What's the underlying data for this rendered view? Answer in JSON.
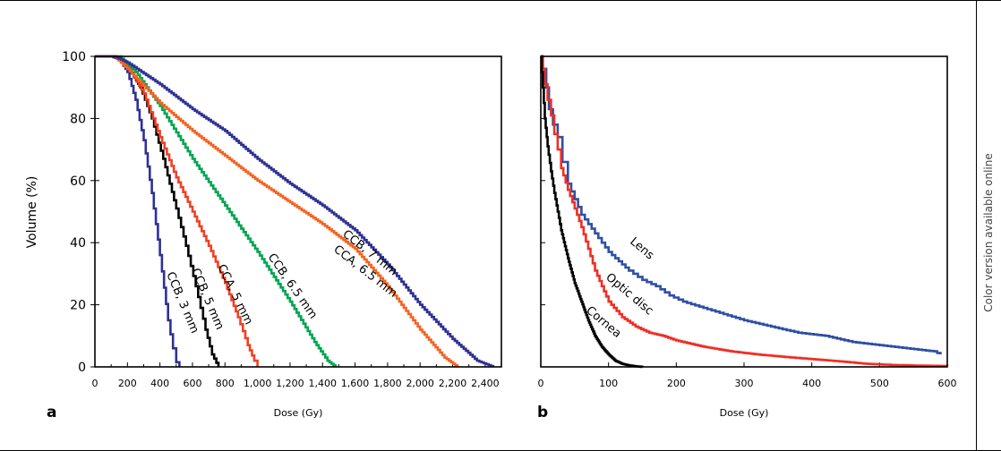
{
  "side_note": "Color version available online",
  "chart_data": [
    {
      "type": "line",
      "panel": "a",
      "xlabel": "Dose (Gy)",
      "ylabel": "Volume (%)",
      "xlim": [
        0,
        2500
      ],
      "ylim": [
        0,
        100
      ],
      "x_ticks": [
        0,
        200,
        400,
        600,
        800,
        1000,
        1200,
        1400,
        1600,
        1800,
        2000,
        2200,
        2400
      ],
      "x_tick_labels": [
        "0",
        "200",
        "400",
        "600",
        "800",
        "1,000",
        "1,200",
        "1,400",
        "1,600",
        "1,800",
        "2,000",
        "2,200",
        "2,400"
      ],
      "y_ticks": [
        0,
        20,
        40,
        60,
        80,
        100
      ],
      "y_tick_labels": [
        "0",
        "20",
        "40",
        "60",
        "80",
        "100"
      ],
      "series": [
        {
          "name": "CCB, 3 mm",
          "color": "#2e3192",
          "x": [
            0,
            100,
            150,
            200,
            250,
            300,
            350,
            400,
            450,
            480,
            500,
            520
          ],
          "y": [
            100,
            100,
            99,
            95,
            86,
            73,
            56,
            36,
            15,
            6,
            1.5,
            0
          ]
        },
        {
          "name": "CCB, 5 mm",
          "color": "#000000",
          "x": [
            0,
            120,
            200,
            280,
            350,
            420,
            500,
            560,
            620,
            680,
            720,
            760
          ],
          "y": [
            100,
            100,
            97,
            90,
            80,
            67,
            51,
            39,
            26,
            12,
            4,
            0
          ]
        },
        {
          "name": "CCA, 5 mm",
          "color": "#ef4123",
          "x": [
            0,
            120,
            200,
            300,
            400,
            500,
            600,
            700,
            800,
            880,
            940,
            980,
            1000
          ],
          "y": [
            100,
            100,
            97,
            88,
            74,
            61,
            50,
            39,
            27,
            16,
            7,
            2,
            0
          ]
        },
        {
          "name": "CCB, 6.5 mm",
          "color": "#00a651",
          "x": [
            0,
            150,
            250,
            400,
            600,
            800,
            1000,
            1200,
            1350,
            1430,
            1480
          ],
          "y": [
            100,
            100,
            95,
            84,
            67,
            52,
            37,
            21,
            8,
            2,
            0
          ]
        },
        {
          "name": "CCA, 6.5 mm",
          "color": "#f26522",
          "x": [
            0,
            120,
            200,
            400,
            600,
            800,
            1000,
            1200,
            1400,
            1600,
            1800,
            2000,
            2150,
            2230
          ],
          "y": [
            100,
            100,
            96,
            85,
            76,
            68,
            60,
            53,
            46,
            38,
            26,
            12,
            3,
            0
          ]
        },
        {
          "name": "CCB, 7 mm",
          "color": "#2e3192",
          "x": [
            0,
            120,
            200,
            400,
            600,
            800,
            1000,
            1200,
            1400,
            1600,
            1800,
            2000,
            2200,
            2350,
            2450
          ],
          "y": [
            100,
            100,
            98,
            91,
            83,
            76,
            67,
            59,
            52,
            44,
            33,
            20,
            9,
            2,
            0
          ]
        }
      ]
    },
    {
      "type": "line",
      "panel": "b",
      "xlabel": "Dose (Gy)",
      "ylabel": "",
      "xlim": [
        0,
        600
      ],
      "ylim": [
        0,
        100
      ],
      "x_ticks": [
        0,
        100,
        200,
        300,
        400,
        500,
        600
      ],
      "x_tick_labels": [
        "0",
        "100",
        "200",
        "300",
        "400",
        "500",
        "600"
      ],
      "series": [
        {
          "name": "Lens",
          "color": "#2e4fa3",
          "x": [
            0,
            3,
            8,
            12,
            18,
            25,
            32,
            40,
            50,
            60,
            70,
            80,
            90,
            100,
            115,
            130,
            150,
            170,
            190,
            210,
            240,
            270,
            300,
            340,
            380,
            420,
            460,
            500,
            540,
            580,
            590
          ],
          "y": [
            100,
            96,
            90,
            83,
            78,
            74,
            66,
            59,
            54,
            49,
            46,
            43,
            40,
            37,
            34,
            31,
            28,
            26,
            23,
            21,
            19,
            17,
            15,
            13,
            11,
            10,
            8,
            7,
            6,
            5,
            4
          ]
        },
        {
          "name": "Optic disc",
          "color": "#ef2e24",
          "x": [
            0,
            3,
            6,
            10,
            15,
            20,
            25,
            30,
            40,
            50,
            60,
            70,
            80,
            90,
            100,
            120,
            140,
            160,
            180,
            200,
            240,
            280,
            320,
            360,
            400,
            440,
            480,
            520,
            560,
            600
          ],
          "y": [
            100,
            96,
            91,
            86,
            81,
            75,
            70,
            64,
            57,
            51,
            45,
            38,
            31,
            26,
            21,
            16,
            13,
            11,
            10,
            8.5,
            6.5,
            5,
            4,
            3.2,
            2.5,
            1.8,
            1,
            0.6,
            0.4,
            0.3
          ]
        },
        {
          "name": "Cornea",
          "color": "#000000",
          "x": [
            0,
            3,
            6,
            10,
            15,
            20,
            25,
            30,
            40,
            50,
            60,
            70,
            80,
            90,
            100,
            110,
            120,
            130,
            140,
            150
          ],
          "y": [
            100,
            90,
            80,
            71,
            63,
            56,
            50,
            44,
            35,
            27,
            21,
            15,
            10,
            6.5,
            4,
            2,
            1,
            0.5,
            0.2,
            0
          ]
        }
      ]
    }
  ]
}
